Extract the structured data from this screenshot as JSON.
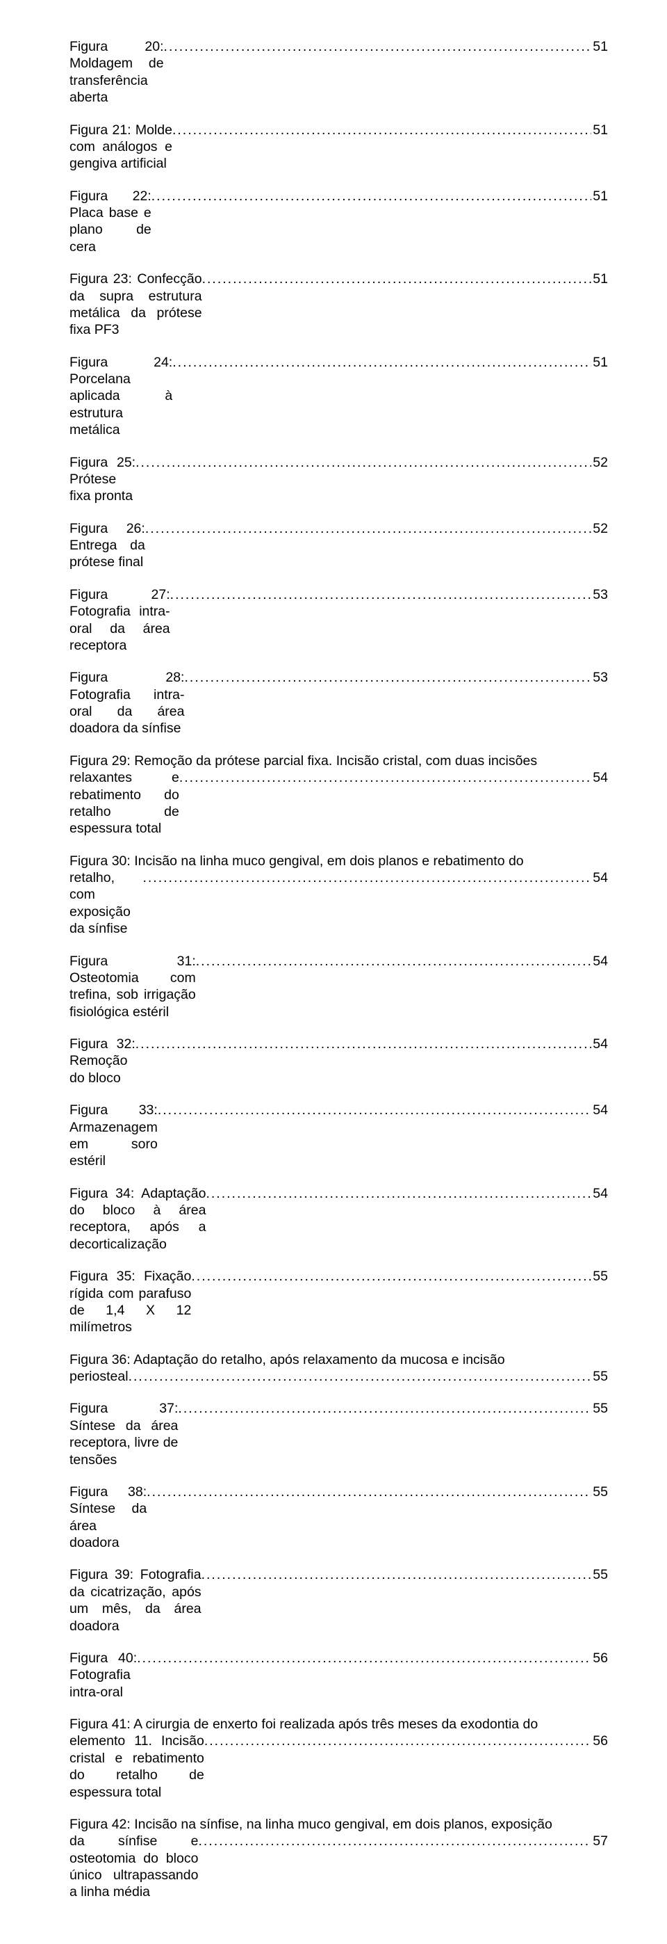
{
  "dots": "...............................................................................................................................................................................................................................................",
  "entries": [
    {
      "prefix": "",
      "text": "Figura 20: Moldagem de transferência aberta",
      "page": "51"
    },
    {
      "prefix": "",
      "text": "Figura 21: Molde com análogos e gengiva artificial",
      "page": "51"
    },
    {
      "prefix": "",
      "text": "Figura 22: Placa base e plano de cera",
      "page": " 51"
    },
    {
      "prefix": "",
      "text": "Figura 23: Confecção da supra estrutura metálica da prótese fixa PF3",
      "page": "51"
    },
    {
      "prefix": "",
      "text": "Figura 24: Porcelana aplicada à estrutura metálica",
      "page": "51"
    },
    {
      "prefix": "",
      "text": "Figura 25: Prótese fixa pronta",
      "page": "52"
    },
    {
      "prefix": "",
      "text": "Figura 26: Entrega da prótese final",
      "page": "52"
    },
    {
      "prefix": "",
      "text": "Figura 27: Fotografia intra-oral da área receptora",
      "page": "53"
    },
    {
      "prefix": "",
      "text": "Figura 28: Fotografia intra-oral da área doadora da sínfise",
      "page": "53"
    },
    {
      "prefix": "Figura 29: Remoção da prótese parcial fixa. Incisão cristal, com duas incisões ",
      "text": "relaxantes e rebatimento do retalho de espessura total",
      "page": "54"
    },
    {
      "prefix": "Figura 30: Incisão na linha muco gengival, em dois planos e rebatimento do ",
      "text": "retalho, com exposição da sínfise",
      "page": "54"
    },
    {
      "prefix": "",
      "text": "Figura 31: Osteotomia com trefina, sob irrigação fisiológica estéril",
      "page": "54"
    },
    {
      "prefix": "",
      "text": "Figura 32: Remoção do bloco",
      "page": "54"
    },
    {
      "prefix": "",
      "text": "Figura 33: Armazenagem em soro estéril",
      "page": "54"
    },
    {
      "prefix": "",
      "text": "Figura 34: Adaptação do bloco à área receptora, após a decorticalização",
      "page": "54"
    },
    {
      "prefix": "",
      "text": "Figura 35: Fixação rígida com parafuso de 1,4 X 12 milímetros",
      "page": "55"
    },
    {
      "prefix": "Figura 36: Adaptação do retalho, após relaxamento da mucosa e incisão ",
      "text": "periosteal",
      "page": "55"
    },
    {
      "prefix": "",
      "text": "Figura 37: Síntese da área receptora, livre de tensões",
      "page": "55"
    },
    {
      "prefix": "",
      "text": "Figura 38: Síntese da área doadora",
      "page": "55"
    },
    {
      "prefix": "",
      "text": "Figura 39: Fotografia da cicatrização, após um mês, da área doadora",
      "page": "55"
    },
    {
      "prefix": "",
      "text": "Figura 40: Fotografia intra-oral",
      "page": "56"
    },
    {
      "prefix": "Figura 41: A cirurgia de enxerto foi realizada após três meses da exodontia do ",
      "text": "elemento 11. Incisão cristal e rebatimento do retalho de espessura total",
      "page": "56"
    },
    {
      "prefix": "Figura 42: Incisão na sínfise, na linha muco gengival, em dois planos, exposição ",
      "text": "da sínfise e osteotomia do bloco único ultrapassando a linha média",
      "page": "57"
    }
  ]
}
